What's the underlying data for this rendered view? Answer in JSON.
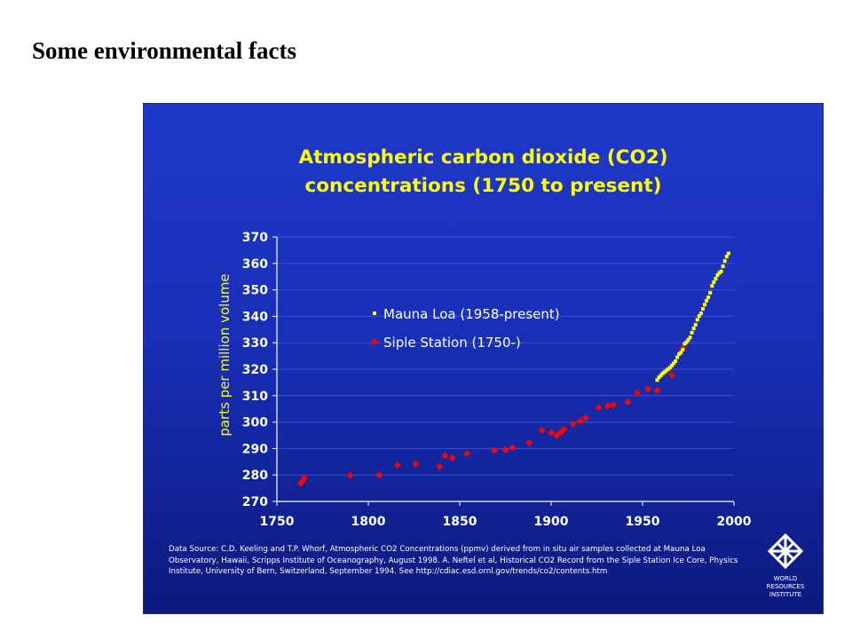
{
  "slide": {
    "title": "Some environmental facts"
  },
  "chart_data": {
    "type": "scatter",
    "title_line1": "Atmospheric carbon dioxide (CO2)",
    "title_line2": "concentrations (1750 to present)",
    "xlabel": "",
    "ylabel": "parts per million volume",
    "xlim": [
      1750,
      2000
    ],
    "ylim": [
      270,
      370
    ],
    "x_ticks": [
      1750,
      1800,
      1850,
      1900,
      1950,
      2000
    ],
    "y_ticks": [
      270,
      280,
      290,
      300,
      310,
      320,
      330,
      340,
      350,
      360,
      370
    ],
    "grid": "horizontal",
    "legend_position": "upper-center",
    "series": [
      {
        "name": "Mauna Loa (1958-present)",
        "marker": "square",
        "color": "#ffff00",
        "x": [
          1958,
          1959,
          1960,
          1961,
          1962,
          1963,
          1964,
          1965,
          1966,
          1967,
          1968,
          1969,
          1970,
          1971,
          1972,
          1973,
          1974,
          1975,
          1976,
          1977,
          1978,
          1979,
          1980,
          1981,
          1982,
          1983,
          1984,
          1985,
          1986,
          1987,
          1988,
          1989,
          1990,
          1991,
          1992,
          1993,
          1994,
          1995,
          1996,
          1997
        ],
        "y": [
          315.9,
          316.9,
          317.6,
          318.4,
          318.9,
          319.5,
          320.0,
          320.6,
          321.4,
          322.2,
          323.0,
          324.5,
          325.7,
          326.3,
          327.4,
          329.6,
          330.2,
          331.1,
          332.0,
          333.8,
          335.4,
          336.8,
          338.7,
          340.1,
          341.1,
          342.8,
          344.4,
          345.9,
          347.2,
          348.9,
          351.5,
          352.9,
          354.2,
          355.6,
          356.4,
          357.0,
          358.9,
          360.9,
          362.6,
          363.8
        ]
      },
      {
        "name": "Siple Station (1750-)",
        "marker": "diamond",
        "color": "#ff0000",
        "x": [
          1763,
          1764,
          1765,
          1790,
          1806,
          1816,
          1826,
          1839,
          1842,
          1846,
          1854,
          1869,
          1875,
          1879,
          1888,
          1895,
          1900,
          1903,
          1905,
          1907,
          1912,
          1916,
          1919,
          1926,
          1931,
          1934,
          1942,
          1947,
          1953,
          1958,
          1966,
          1972
        ],
        "y": [
          276.9,
          277.8,
          278.8,
          280.0,
          280.0,
          283.8,
          284.2,
          283.2,
          287.3,
          286.4,
          288.1,
          289.3,
          289.5,
          290.3,
          292.2,
          296.9,
          296.0,
          294.9,
          296.0,
          297.3,
          299.3,
          300.4,
          301.6,
          305.5,
          306.1,
          306.5,
          307.6,
          311.1,
          312.5,
          312.0,
          317.8,
          327.8
        ]
      }
    ],
    "source_note": "Data Source: C.D. Keeling and T.P. Whorf, Atmospheric CO2 Concentrations (ppmv) derived from in situ air samples collected at Mauna Loa Observatory, Hawaii, Scripps Institute of Oceanography, August 1998. A. Neftel et al, Historical CO2 Record from the Siple Station Ice Core, Physics Institute, University of Bern, Switzerland, September 1994. See http://cdiac.esd.ornl.gov/trends/co2/contents.htm"
  },
  "logo": {
    "line1": "WORLD",
    "line2": "RESOURCES",
    "line3": "INSTITUTE",
    "icon": "wri-lattice-icon"
  },
  "colors": {
    "panel_top": "#1f38c8",
    "panel_bottom": "#0c1a7e",
    "title": "#ffff00",
    "axis": "#ffffff",
    "grid": "#3a50d0"
  }
}
